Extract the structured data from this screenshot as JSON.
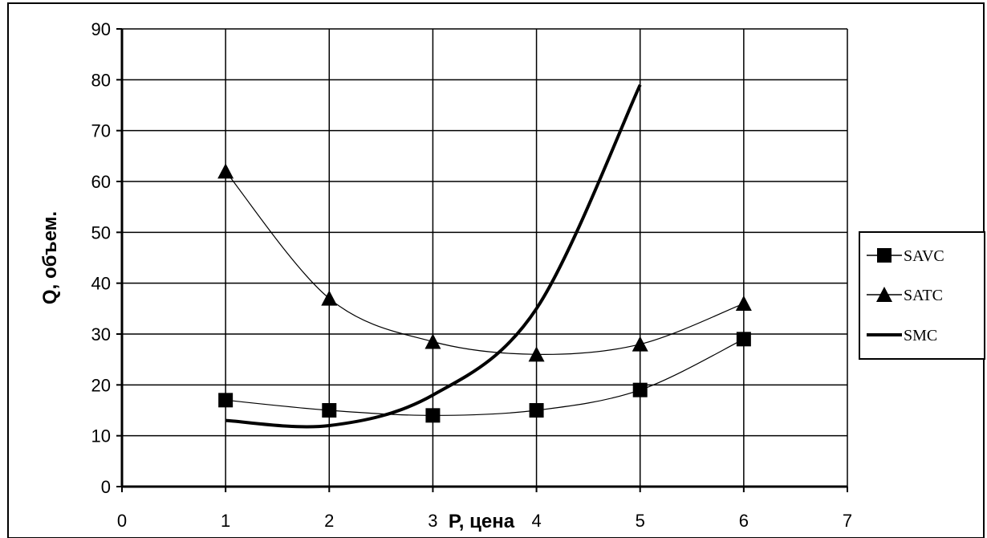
{
  "chart_data": {
    "type": "line",
    "title": "",
    "xlabel": "P, цена",
    "ylabel": "Q, объем.",
    "xlim": [
      0,
      7
    ],
    "ylim": [
      0,
      90
    ],
    "xticks": [
      0,
      1,
      2,
      3,
      4,
      5,
      6,
      7
    ],
    "yticks": [
      0,
      10,
      20,
      30,
      40,
      50,
      60,
      70,
      80,
      90
    ],
    "x_tick_labels": [
      "0",
      "1",
      "2",
      "3",
      "4",
      "5",
      "6",
      "7"
    ],
    "y_tick_labels": [
      "0",
      "10",
      "20",
      "30",
      "40",
      "50",
      "60",
      "70",
      "80",
      "90"
    ],
    "grid": true,
    "legend_position": "right",
    "series": [
      {
        "name": "SAVC",
        "marker": "square",
        "line": "thin",
        "color": "#000000",
        "x": [
          1,
          2,
          3,
          4,
          5,
          6
        ],
        "y": [
          17,
          15,
          14,
          15,
          19,
          29
        ]
      },
      {
        "name": "SATC",
        "marker": "triangle",
        "line": "thin",
        "color": "#000000",
        "x": [
          1,
          2,
          3,
          4,
          5,
          6
        ],
        "y": [
          62,
          37,
          28.5,
          26,
          28,
          36
        ]
      },
      {
        "name": "SMC",
        "marker": "none",
        "line": "thick",
        "color": "#000000",
        "x": [
          1,
          2,
          3,
          4,
          5
        ],
        "y": [
          13,
          12,
          18,
          35,
          79
        ]
      }
    ]
  }
}
